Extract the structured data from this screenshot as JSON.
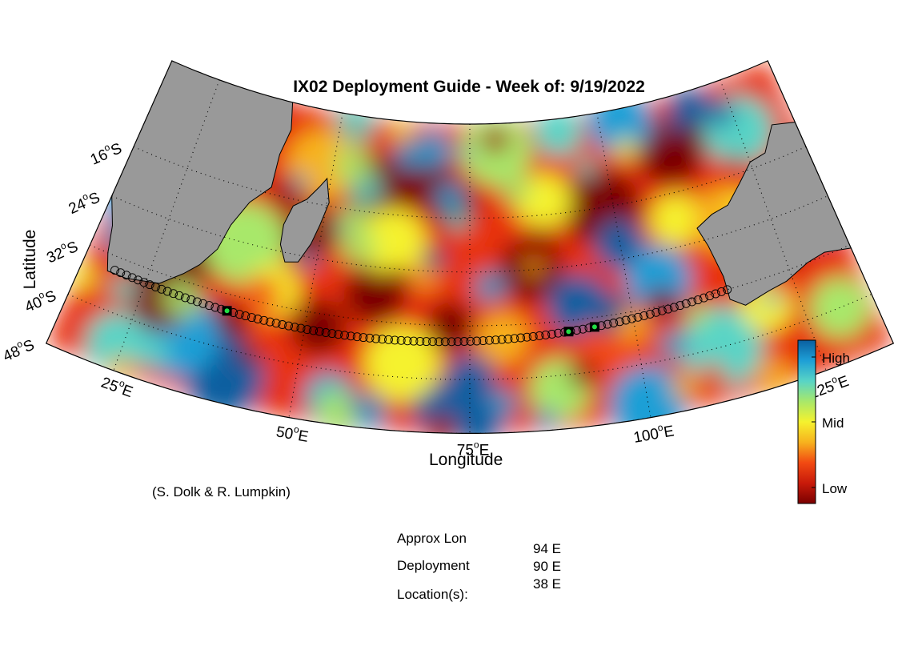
{
  "title": "IX02 Deployment Guide - Week of: 9/19/2022",
  "xlabel": "Longitude",
  "ylabel": "Latitude",
  "credit": "(S. Dolk & R. Lumpkin)",
  "lon_ticks": [
    {
      "value": 25,
      "num": "25",
      "sup": "o",
      "hemi": "E"
    },
    {
      "value": 50,
      "num": "50",
      "sup": "o",
      "hemi": "E"
    },
    {
      "value": 75,
      "num": "75",
      "sup": "o",
      "hemi": "E"
    },
    {
      "value": 100,
      "num": "100",
      "sup": "o",
      "hemi": "E"
    },
    {
      "value": 125,
      "num": "125",
      "sup": "o",
      "hemi": "E"
    }
  ],
  "lat_ticks": [
    {
      "value": -16,
      "num": "16",
      "sup": "o",
      "hemi": "S"
    },
    {
      "value": -24,
      "num": "24",
      "sup": "o",
      "hemi": "S"
    },
    {
      "value": -32,
      "num": "32",
      "sup": "o",
      "hemi": "S"
    },
    {
      "value": -40,
      "num": "40",
      "sup": "o",
      "hemi": "S"
    },
    {
      "value": -48,
      "num": "48",
      "sup": "o",
      "hemi": "S"
    }
  ],
  "map_extent": {
    "lon_min": 15,
    "lon_max": 135,
    "lat_max": -2,
    "lat_min": -48
  },
  "colorbar": {
    "labels": [
      "High",
      "Mid",
      "Low"
    ],
    "colors": [
      "#0a5fa0",
      "#1e9fd6",
      "#58d4c6",
      "#a8e86a",
      "#f5f22e",
      "#f7b21e",
      "#f24a12",
      "#c81a0a",
      "#7a0000"
    ]
  },
  "colors": {
    "land": "#999999",
    "coast": "#000000",
    "track_marker": "#000000",
    "deployment_marker": "#22dd44"
  },
  "route": {
    "start_lon": 20,
    "start_lat": -34,
    "end_lon": 115,
    "end_lat": -32
  },
  "deployments": [
    {
      "lon": 94
    },
    {
      "lon": 90
    },
    {
      "lon": 38
    }
  ],
  "table": {
    "label_lines": [
      "Approx Lon",
      "Deployment",
      "Location(s):"
    ],
    "values": [
      "94 E",
      "90 E",
      "38 E"
    ]
  }
}
